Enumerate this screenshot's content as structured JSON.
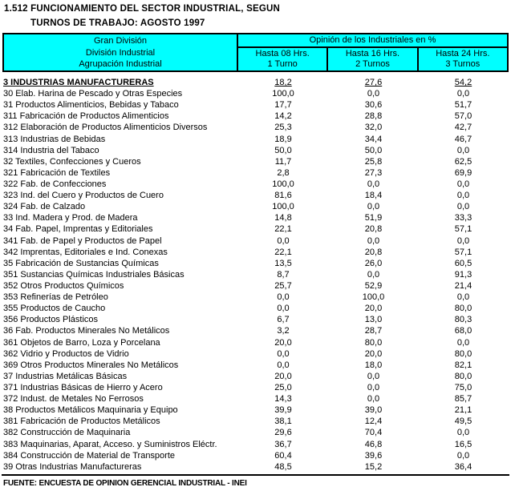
{
  "title": {
    "line1": "1.512 FUNCIONAMIENTO DEL SECTOR INDUSTRIAL, SEGUN",
    "line2": "TURNOS DE TRABAJO: AGOSTO 1997"
  },
  "table": {
    "header": {
      "left_lines": [
        "Gran División",
        "División Industrial",
        "Agrupación Industrial"
      ],
      "group_title": "Opinión de los Industriales en %",
      "columns": [
        {
          "line1": "Hasta 08 Hrs.",
          "line2": "1 Turno"
        },
        {
          "line1": "Hasta 16 Hrs.",
          "line2": "2 Turnos"
        },
        {
          "line1": "Hasta 24 Hrs.",
          "line2": "3 Turnos"
        }
      ]
    },
    "rows": [
      {
        "label": "3 INDUSTRIAS MANUFACTURERAS",
        "values": [
          "18,2",
          "27,6",
          "54,2"
        ],
        "emphasis": true
      },
      {
        "label": "30 Elab. Harina de Pescado y Otras Especies",
        "values": [
          "100,0",
          "0,0",
          "0,0"
        ]
      },
      {
        "label": "31 Productos Alimenticios, Bebidas y Tabaco",
        "values": [
          "17,7",
          "30,6",
          "51,7"
        ]
      },
      {
        "label": "311 Fabricación de Productos Alimenticios",
        "values": [
          "14,2",
          "28,8",
          "57,0"
        ]
      },
      {
        "label": "312 Elaboración de Productos Alimenticios Diversos",
        "values": [
          "25,3",
          "32,0",
          "42,7"
        ]
      },
      {
        "label": "313 Industrias de Bebidas",
        "values": [
          "18,9",
          "34,4",
          "46,7"
        ]
      },
      {
        "label": "314 Industria del Tabaco",
        "values": [
          "50,0",
          "50,0",
          "0,0"
        ]
      },
      {
        "label": "32 Textiles, Confecciones y Cueros",
        "values": [
          "11,7",
          "25,8",
          "62,5"
        ]
      },
      {
        "label": "321 Fabricación de Textiles",
        "values": [
          "2,8",
          "27,3",
          "69,9"
        ]
      },
      {
        "label": "322 Fab. de Confecciones",
        "values": [
          "100,0",
          "0,0",
          "0,0"
        ]
      },
      {
        "label": "323 Ind. del Cuero y Productos de Cuero",
        "values": [
          "81,6",
          "18,4",
          "0,0"
        ]
      },
      {
        "label": "324 Fab. de Calzado",
        "values": [
          "100,0",
          "0,0",
          "0,0"
        ]
      },
      {
        "label": "33 Ind. Madera y Prod. de Madera",
        "values": [
          "14,8",
          "51,9",
          "33,3"
        ]
      },
      {
        "label": "34 Fab. Papel, Imprentas y Editoriales",
        "values": [
          "22,1",
          "20,8",
          "57,1"
        ]
      },
      {
        "label": "341 Fab. de Papel y Productos de Papel",
        "values": [
          "0,0",
          "0,0",
          "0,0"
        ]
      },
      {
        "label": "342 Imprentas, Editoriales e Ind. Conexas",
        "values": [
          "22,1",
          "20,8",
          "57,1"
        ]
      },
      {
        "label": "35 Fabricación de Sustancias Químicas",
        "values": [
          "13,5",
          "26,0",
          "60,5"
        ]
      },
      {
        "label": "351 Sustancias Químicas Industriales Básicas",
        "values": [
          "8,7",
          "0,0",
          "91,3"
        ]
      },
      {
        "label": "352 Otros Productos Químicos",
        "values": [
          "25,7",
          "52,9",
          "21,4"
        ]
      },
      {
        "label": "353 Refinerías de Petróleo",
        "values": [
          "0,0",
          "100,0",
          "0,0"
        ]
      },
      {
        "label": "355 Productos de Caucho",
        "values": [
          "0,0",
          "20,0",
          "80,0"
        ]
      },
      {
        "label": "356 Productos Plásticos",
        "values": [
          "6,7",
          "13,0",
          "80,3"
        ]
      },
      {
        "label": "36 Fab. Productos Minerales No Metálicos",
        "values": [
          "3,2",
          "28,7",
          "68,0"
        ]
      },
      {
        "label": "361 Objetos de Barro, Loza y Porcelana",
        "values": [
          "20,0",
          "80,0",
          "0,0"
        ]
      },
      {
        "label": "362 Vidrio y Productos de Vidrio",
        "values": [
          "0,0",
          "20,0",
          "80,0"
        ]
      },
      {
        "label": "369 Otros Productos Minerales No Metálicos",
        "values": [
          "0,0",
          "18,0",
          "82,1"
        ]
      },
      {
        "label": "37 Industrias Metálicas Básicas",
        "values": [
          "20,0",
          "0,0",
          "80,0"
        ]
      },
      {
        "label": "371 Industrias Básicas de Hierro y Acero",
        "values": [
          "25,0",
          "0,0",
          "75,0"
        ]
      },
      {
        "label": "372 Indust. de Metales No Ferrosos",
        "values": [
          "14,3",
          "0,0",
          "85,7"
        ]
      },
      {
        "label": "38 Productos Metálicos Maquinaria y Equipo",
        "values": [
          "39,9",
          "39,0",
          "21,1"
        ]
      },
      {
        "label": "381 Fabricación de Productos Metálicos",
        "values": [
          "38,1",
          "12,4",
          "49,5"
        ]
      },
      {
        "label": "382 Construcción de Maquinaria",
        "values": [
          "29,6",
          "70,4",
          "0,0"
        ]
      },
      {
        "label": "383 Maquinarias, Aparat, Acceso. y Suministros Eléctr.",
        "values": [
          "36,7",
          "46,8",
          "16,5"
        ]
      },
      {
        "label": "384 Construcción de Material de Transporte",
        "values": [
          "60,4",
          "39,6",
          "0,0"
        ]
      },
      {
        "label": "39 Otras Industrias Manufactureras",
        "values": [
          "48,5",
          "15,2",
          "36,4"
        ]
      }
    ]
  },
  "footer": {
    "source": "FUENTE: ENCUESTA DE OPINION GERENCIAL INDUSTRIAL - INEI"
  },
  "colors": {
    "header_bg": "#00FFFF",
    "border": "#000000",
    "text": "#000000",
    "background": "#FFFFFF"
  }
}
